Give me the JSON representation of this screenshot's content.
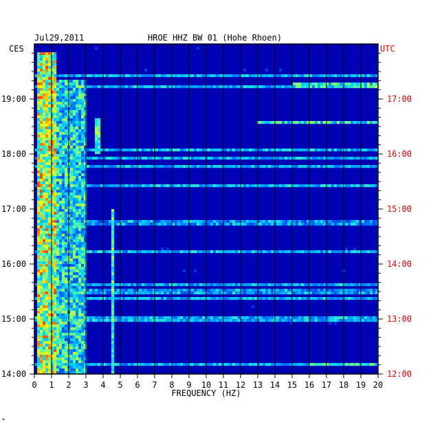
{
  "header": {
    "date": "Jul29,2011",
    "title": "HROE HHZ BW 01 (Hohe Rhoen)"
  },
  "footer": {
    "mark": "*"
  },
  "chart_data": {
    "type": "heatmap",
    "title": "HROE HHZ BW 01 (Hohe Rhoen)",
    "date": "Jul29,2011",
    "xlabel": "FREQUENCY (HZ)",
    "xlim": [
      0,
      20
    ],
    "x_ticks": [
      "0",
      "1",
      "2",
      "3",
      "4",
      "5",
      "6",
      "7",
      "8",
      "9",
      "10",
      "11",
      "12",
      "13",
      "14",
      "15",
      "16",
      "17",
      "18",
      "19",
      "20"
    ],
    "left_axis": {
      "label": "CES",
      "range": [
        "14:00",
        "19:50"
      ],
      "ticks": [
        "19:00",
        "18:00",
        "17:00",
        "16:00",
        "15:00",
        "14:00"
      ]
    },
    "right_axis": {
      "label": "UTC",
      "range": [
        "12:00",
        "17:50"
      ],
      "ticks": [
        "17:00",
        "16:00",
        "15:00",
        "14:00",
        "13:00",
        "12:00"
      ],
      "color": "#e00000"
    },
    "colors": {
      "background": "#0000b4",
      "grid": "#000000",
      "low": "#0020d0",
      "mid": "#00c8ff",
      "high": "#ffff00",
      "peak": "#ff0000"
    },
    "features": [
      {
        "type": "band",
        "freq_range": [
          0.2,
          1.2
        ],
        "time_range": [
          "14:00",
          "19:50"
        ],
        "level": "high"
      },
      {
        "type": "band",
        "freq_range": [
          1.2,
          3.0
        ],
        "time_range": [
          "14:00",
          "19:20"
        ],
        "level": "mid"
      },
      {
        "type": "line",
        "freq": 4.6,
        "time_range": [
          "14:00",
          "17:00"
        ],
        "level": "mid"
      },
      {
        "type": "line",
        "freq": 3.7,
        "time_range": [
          "18:00",
          "18:40"
        ],
        "level": "mid"
      },
      {
        "type": "burst",
        "freq_range": [
          13,
          20
        ],
        "time": "18:35",
        "level": "mid"
      },
      {
        "type": "burst",
        "freq_range": [
          15,
          20
        ],
        "time": "19:15",
        "level": "mid"
      },
      {
        "type": "burst",
        "freq_range": [
          16,
          20
        ],
        "time": "14:10",
        "level": "mid"
      },
      {
        "type": "burst",
        "freq_range": [
          2,
          20
        ],
        "time": "15:30",
        "level": "low"
      },
      {
        "type": "burst",
        "freq_range": [
          2,
          20
        ],
        "time": "16:45",
        "level": "low"
      },
      {
        "type": "burst",
        "freq_range": [
          6,
          20
        ],
        "time": "17:25",
        "level": "low"
      }
    ]
  }
}
